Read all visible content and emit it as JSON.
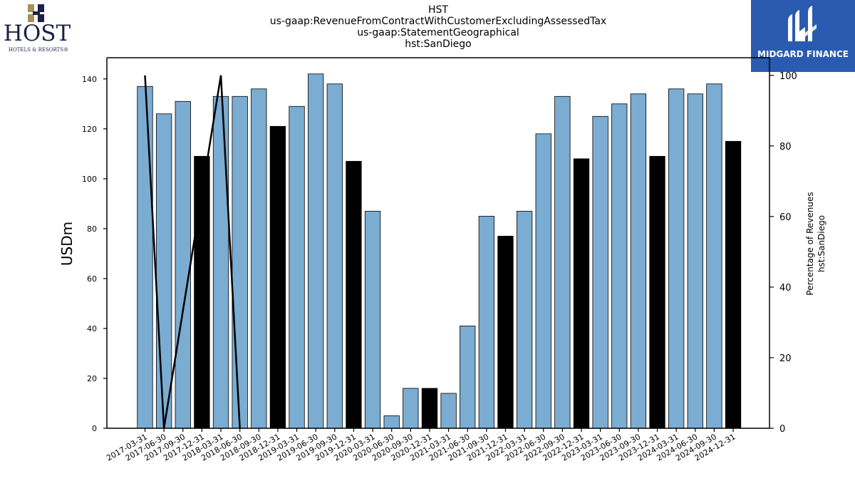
{
  "header": {
    "title_lines": [
      "HST",
      "us-gaap:RevenueFromContractWithCustomerExcludingAssessedTax",
      "us-gaap:StatementGeographical",
      "hst:SanDiego"
    ]
  },
  "logos": {
    "host_name": "HOST",
    "host_tagline": "HOTELS & RESORTS®",
    "midgard_name": "MIDGARD FINANCE"
  },
  "colors": {
    "bar_quarter": "#7bacd2",
    "bar_year_end": "#000000",
    "line": "#000000",
    "midgard_bg": "#2b5bb0"
  },
  "chart_data": {
    "type": "bar",
    "categories": [
      "2017-03-31",
      "2017-06-30",
      "2017-09-30",
      "2017-12-31",
      "2018-03-31",
      "2018-06-30",
      "2018-09-30",
      "2018-12-31",
      "2019-03-31",
      "2019-06-30",
      "2019-09-30",
      "2019-12-31",
      "2020-03-31",
      "2020-06-30",
      "2020-09-30",
      "2020-12-31",
      "2021-03-31",
      "2021-06-30",
      "2021-09-30",
      "2021-12-31",
      "2022-03-31",
      "2022-06-30",
      "2022-09-30",
      "2022-12-31",
      "2023-03-31",
      "2023-06-30",
      "2023-09-30",
      "2023-12-31",
      "2024-03-31",
      "2024-06-30",
      "2024-09-30",
      "2024-12-31"
    ],
    "values": [
      137,
      126,
      131,
      109,
      133,
      133,
      136,
      121,
      129,
      142,
      138,
      107,
      87,
      5,
      16,
      16,
      14,
      41,
      85,
      77,
      87,
      118,
      133,
      108,
      125,
      130,
      134,
      109,
      136,
      134,
      138,
      115
    ],
    "highlight_year_end": true,
    "line_series": {
      "points": [
        [
          0,
          100
        ],
        [
          1,
          0
        ],
        [
          4,
          100
        ],
        [
          5,
          0
        ]
      ],
      "axis": "right"
    },
    "ylabel": "USDm",
    "ylabel_right_lines": [
      "Percentage of Revenues",
      "hst:SanDiego"
    ],
    "ylim": [
      0,
      148.5
    ],
    "yticks": [
      0,
      20,
      40,
      60,
      80,
      100,
      120,
      140
    ],
    "ylim_right": [
      0,
      105
    ],
    "yticks_right": [
      0,
      20,
      40,
      60,
      80,
      100
    ],
    "grid": false,
    "legend": "none"
  }
}
